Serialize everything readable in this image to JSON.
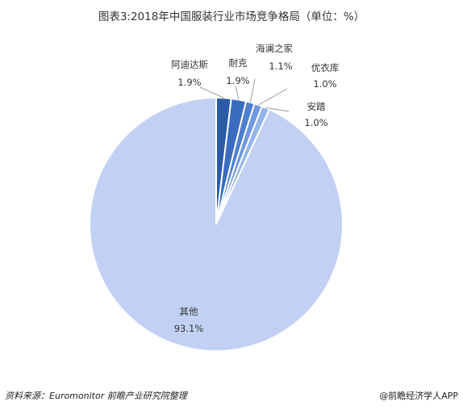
{
  "title": "图表3:2018年中国服装行业市场竞争格局（单位：%）",
  "chart_data": {
    "type": "pie",
    "slices": [
      {
        "name": "阿迪达斯",
        "value": 1.9,
        "value_label": "1.9%",
        "color": "#2b5aa6"
      },
      {
        "name": "耐克",
        "value": 1.9,
        "value_label": "1.9%",
        "color": "#3a6cc0"
      },
      {
        "name": "海澜之家",
        "value": 1.1,
        "value_label": "1.1%",
        "color": "#4d7fd1"
      },
      {
        "name": "优衣库",
        "value": 1.0,
        "value_label": "1.0%",
        "color": "#6f98e0"
      },
      {
        "name": "安踏",
        "value": 1.0,
        "value_label": "1.0%",
        "color": "#93b3ea"
      },
      {
        "name": "其他",
        "value": 93.1,
        "value_label": "93.1%",
        "color": "#c2d1f3"
      }
    ],
    "slice_border_color": "#ffffff",
    "leader_line_color": "#999999"
  },
  "footer": {
    "source": "资料来源：Euromonitor 前瞻产业研究院整理",
    "brand": "@前瞻经济学人APP"
  }
}
